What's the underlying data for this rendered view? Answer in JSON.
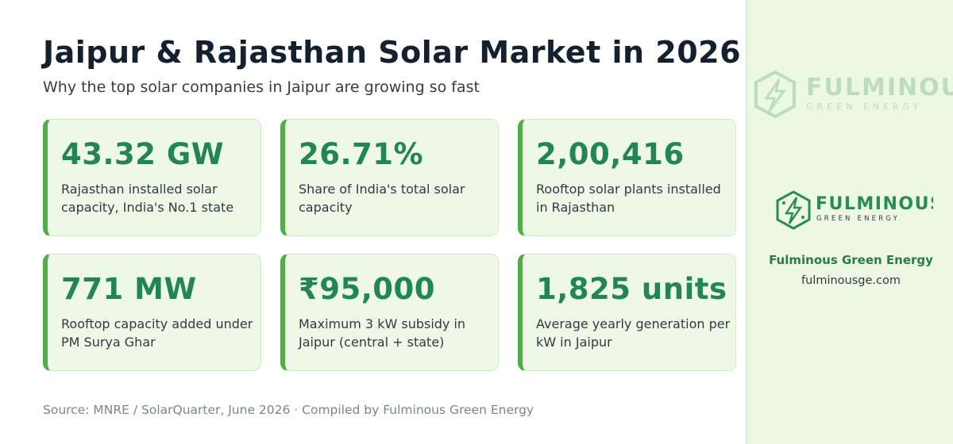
{
  "header": {
    "title": "Jaipur & Rajasthan Solar Market in 2026",
    "subtitle": "Why the top solar companies in Jaipur are growing so fast"
  },
  "stats": [
    {
      "value": "43.32 GW",
      "description": "Rajasthan installed solar capacity, India's No.1 state"
    },
    {
      "value": "26.71%",
      "description": "Share of India's total solar capacity"
    },
    {
      "value": "2,00,416",
      "description": "Rooftop solar plants installed in Rajasthan"
    },
    {
      "value": "771 MW",
      "description": "Rooftop capacity added under PM Surya Ghar"
    },
    {
      "value": "₹95,000",
      "description": "Maximum 3 kW subsidy in Jaipur (central + state)"
    },
    {
      "value": "1,825 units",
      "description": "Average yearly generation per kW in Jaipur"
    }
  ],
  "footer": {
    "source": "Source: MNRE / SolarQuarter, June 2026  ·  Compiled by Fulminous Green Energy"
  },
  "sidebar": {
    "logo_icon": "hexagon-lightning-icon",
    "logo_wordmark": "FULMINOUS",
    "logo_tagline": "GREEN ENERGY",
    "brand_name": "Fulminous Green Energy",
    "website": "fulminousge.com"
  },
  "colors": {
    "accent_green": "#238552",
    "card_bar": "#4fae46",
    "card_bg": "#edf9e6",
    "sidebar_bg": "#ecf8e4"
  }
}
